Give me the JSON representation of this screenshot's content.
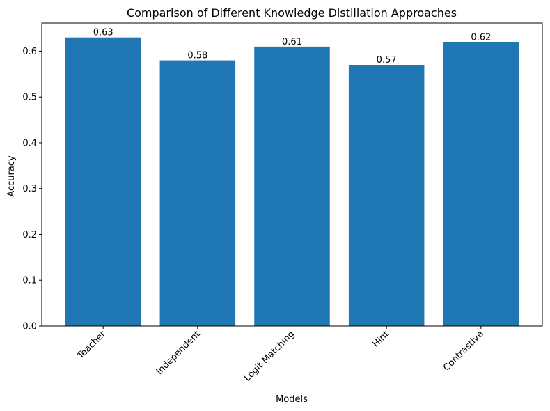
{
  "chart_data": {
    "type": "bar",
    "title": "Comparison of Different Knowledge Distillation Approaches",
    "xlabel": "Models",
    "ylabel": "Accuracy",
    "categories": [
      "Teacher",
      "Independent",
      "Logit Matching",
      "Hint",
      "Contrastive"
    ],
    "values": [
      0.63,
      0.58,
      0.61,
      0.57,
      0.62
    ],
    "value_labels": [
      "0.63",
      "0.58",
      "0.61",
      "0.57",
      "0.62"
    ],
    "yticks": [
      0.0,
      0.1,
      0.2,
      0.3,
      0.4,
      0.5,
      0.6
    ],
    "ytick_labels": [
      "0.0",
      "0.1",
      "0.2",
      "0.3",
      "0.4",
      "0.5",
      "0.6"
    ],
    "ylim": [
      0,
      0.6615
    ],
    "grid": false,
    "bar_color": "#1f77b4"
  }
}
